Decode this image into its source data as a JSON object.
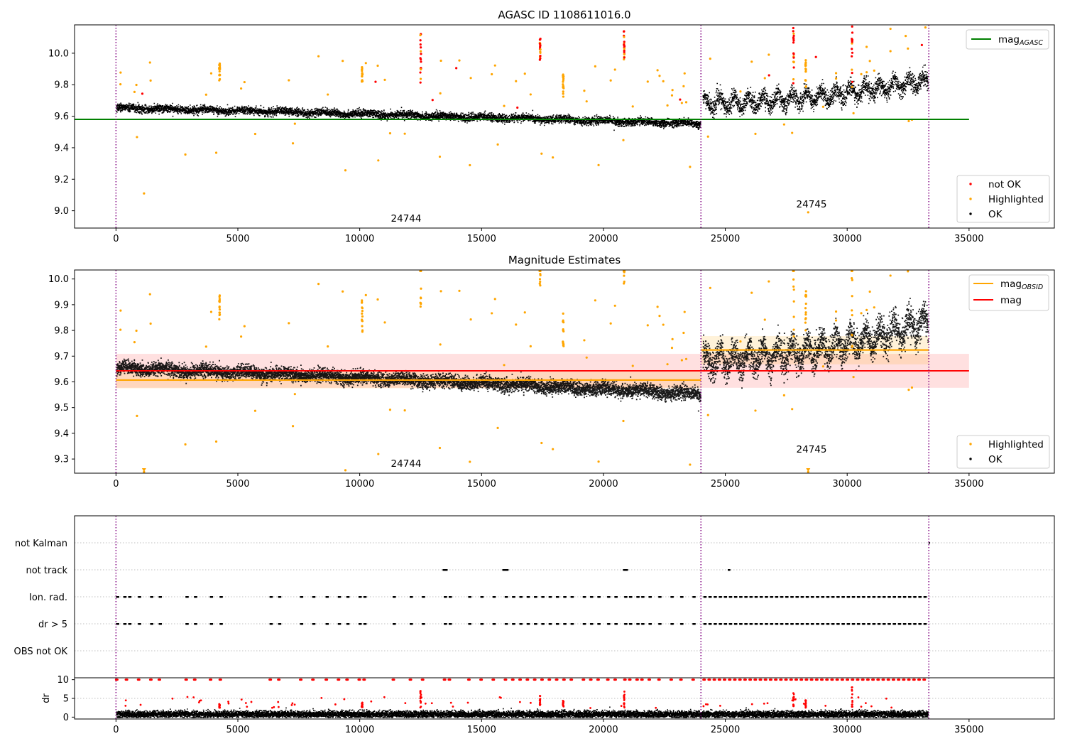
{
  "chart_data": [
    {
      "type": "scatter",
      "title": "AGASC ID 1108611016.0",
      "xlim": [
        -1700,
        38500
      ],
      "ylim": [
        8.89,
        10.18
      ],
      "x_ticks": [
        "0",
        "5000",
        "10000",
        "15000",
        "20000",
        "25000",
        "30000",
        "35000"
      ],
      "y_ticks": [
        "9.0",
        "9.2",
        "9.4",
        "9.6",
        "9.8",
        "10.0"
      ],
      "obs_boundaries": [
        0,
        24000,
        33350
      ],
      "obs_labels": [
        "24744",
        "24745"
      ],
      "lines": [
        {
          "name": "mag_AGASC",
          "value": 9.58,
          "x_range": [
            -1700,
            35000
          ],
          "color": "#008000"
        }
      ],
      "series": [
        {
          "name": "not OK",
          "color": "#ff0000"
        },
        {
          "name": "Highlighted",
          "color": "#ffa500"
        },
        {
          "name": "OK",
          "color": "#000000"
        }
      ],
      "band": {
        "before_gap_start": 9.655,
        "before_gap_end": 9.555,
        "after_gap_start": 9.68,
        "after_gap_end": 9.83
      }
    },
    {
      "type": "scatter",
      "title": "Magnitude Estimates",
      "xlim": [
        -1700,
        38500
      ],
      "ylim": [
        9.245,
        10.035
      ],
      "x_ticks": [
        "0",
        "5000",
        "10000",
        "15000",
        "20000",
        "25000",
        "30000",
        "35000"
      ],
      "y_ticks": [
        "9.3",
        "9.4",
        "9.5",
        "9.6",
        "9.7",
        "9.8",
        "9.9",
        "10.0"
      ],
      "obs_boundaries": [
        0,
        24000,
        33350
      ],
      "obs_labels": [
        "24744",
        "24745"
      ],
      "mag": {
        "value": 9.643,
        "band": [
          9.577,
          9.709
        ],
        "color": "#ff0000"
      },
      "mag_obsid": [
        {
          "x": [
            0,
            24000
          ],
          "value": 9.607,
          "band": [
            9.575,
            9.64
          ]
        },
        {
          "x": [
            24000,
            33350
          ],
          "value": 9.724,
          "band": [
            9.668,
            9.778
          ]
        }
      ],
      "legend": [
        {
          "name": "mag_OBSID",
          "color": "#ffa500"
        },
        {
          "name": "mag",
          "color": "#ff0000"
        }
      ],
      "series": [
        {
          "name": "Highlighted",
          "color": "#ffa500"
        },
        {
          "name": "OK",
          "color": "#000000"
        }
      ]
    },
    {
      "type": "scatter",
      "categories": [
        "not Kalman",
        "not track",
        "Ion. rad.",
        "dr > 5",
        "OBS not OK"
      ],
      "xlim": [
        -1700,
        38500
      ],
      "obs_boundaries": [
        0,
        24000,
        33350
      ],
      "flag_spans": {
        "not Kalman": [
          [
            33340,
            33350
          ]
        ],
        "not track": [
          [
            13400,
            13550
          ],
          [
            15850,
            16050
          ],
          [
            20800,
            20950
          ],
          [
            25100,
            25150
          ]
        ],
        "Ion. rad.": "dense",
        "dr > 5": "dense",
        "OBS not OK": []
      }
    },
    {
      "type": "scatter",
      "ylabel": "dr",
      "xlim": [
        -1700,
        38500
      ],
      "ylim": [
        -0.5,
        10.5
      ],
      "x_ticks": [
        "0",
        "5000",
        "10000",
        "15000",
        "20000",
        "25000",
        "30000",
        "35000"
      ],
      "y_ticks": [
        "0",
        "5",
        "10"
      ],
      "obs_boundaries": [
        0,
        24000,
        33350
      ],
      "clip_value": 10
    }
  ],
  "legend_text": {
    "mag_agasc_base": "mag",
    "mag_agasc_sub": "AGASC",
    "mag_obsid_base": "mag",
    "mag_obsid_sub": "OBSID",
    "mag": "mag",
    "not_ok": "not OK",
    "highlighted": "Highlighted",
    "ok": "OK"
  }
}
